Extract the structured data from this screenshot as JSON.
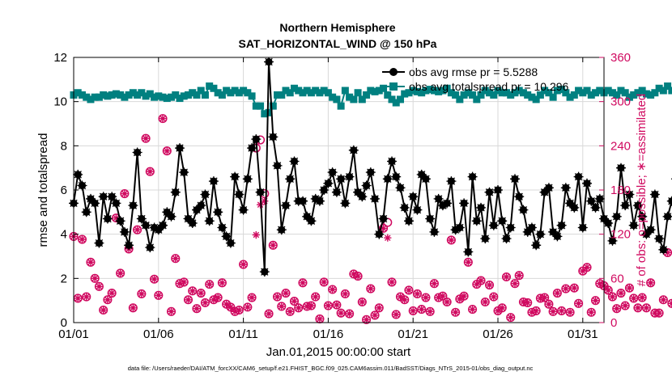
{
  "colors": {
    "rmse": "#000000",
    "spread": "#008080",
    "obs": "#d00a60",
    "axis": "#000000"
  },
  "chart_data": {
    "type": "line",
    "title": "Northern Hemisphere",
    "subtitle": "SAT_HORIZONTAL_WIND @ 150 hPa",
    "xlabel": "Jan.01,2015 00:00:00 start",
    "ylabel": "rmse and totalspread",
    "ylabel_right": "# of obs: o=possible; ∗=assimilated",
    "footer": "data file: /Users/raeder/DAI/ATM_forcXX/CAM6_setup/f.e21.FHIST_BGC.f09_025.CAM6assim.011/BadSST/Diags_NTrS_2015-01/obs_diag_output.nc",
    "x_range": [
      1,
      32.25
    ],
    "ylim": [
      0,
      12
    ],
    "ylim_right": [
      0,
      360
    ],
    "x_ticks": [
      1,
      6,
      11,
      16,
      21,
      26,
      31
    ],
    "x_tick_labels": [
      "01/01",
      "01/06",
      "01/11",
      "01/16",
      "01/21",
      "01/26",
      "01/31"
    ],
    "y_ticks": [
      0,
      2,
      4,
      6,
      8,
      10,
      12
    ],
    "y_ticks_right": [
      0,
      60,
      120,
      180,
      240,
      300,
      360
    ],
    "grid": true,
    "legend_position": "top-right",
    "series": [
      {
        "name": "obs avg rmse pr = 5.5288",
        "axis": "left",
        "values": [
          5.4,
          6.7,
          6.2,
          5.0,
          5.6,
          5.4,
          3.6,
          5.7,
          4.7,
          5.7,
          5.4,
          4.6,
          4.1,
          3.5,
          5.3,
          7.7,
          4.7,
          4.4,
          3.4,
          4.3,
          4.2,
          4.4,
          5.0,
          4.8,
          5.9,
          7.9,
          6.8,
          4.7,
          4.5,
          5.1,
          5.3,
          5.8,
          4.6,
          6.4,
          5.0,
          4.3,
          3.9,
          3.6,
          6.6,
          5.8,
          5.1,
          6.5,
          7.9,
          8.3,
          5.9,
          2.3,
          11.8,
          8.4,
          7.1,
          4.2,
          5.3,
          6.5,
          7.3,
          5.5,
          5.5,
          4.8,
          4.6,
          5.6,
          5.5,
          6.0,
          6.3,
          6.8,
          5.9,
          6.5,
          5.4,
          6.6,
          7.8,
          5.9,
          5.7,
          6.2,
          6.8,
          5.6,
          4.0,
          4.7,
          6.5,
          7.3,
          6.6,
          6.1,
          5.2,
          4.6,
          5.7,
          5.1,
          6.7,
          6.5,
          4.7,
          4.1,
          5.6,
          5.3,
          5.4,
          6.4,
          4.2,
          4.3,
          5.4,
          3.2,
          6.6,
          4.6,
          5.2,
          3.8,
          5.9,
          4.4,
          6.0,
          4.6,
          3.8,
          4.3,
          6.5,
          5.7,
          5.1,
          4.1,
          4.3,
          3.5,
          4.0,
          5.9,
          6.1,
          4.1,
          3.9,
          4.4,
          6.1,
          5.4,
          5.2,
          6.6,
          4.3,
          6.3,
          5.5,
          5.2,
          5.6,
          4.7,
          4.5,
          3.7,
          4.8,
          7.0,
          5.3,
          5.8,
          4.4,
          5.3,
          4.8,
          4.0,
          4.2,
          5.8,
          3.8,
          3.3,
          4.8,
          5.5,
          6.5,
          5.4,
          5.9,
          6.1,
          6.3,
          6.5,
          6.2,
          5.3
        ]
      },
      {
        "name": "obs avg totalspread pr = 10.296",
        "axis": "left",
        "values": [
          10.3,
          10.4,
          10.3,
          10.2,
          10.1,
          10.2,
          10.2,
          10.3,
          10.25,
          10.3,
          10.35,
          10.3,
          10.2,
          10.3,
          10.4,
          10.3,
          10.4,
          10.25,
          10.35,
          10.2,
          10.25,
          10.2,
          10.15,
          10.2,
          10.3,
          10.15,
          10.25,
          10.3,
          10.4,
          10.3,
          10.5,
          10.3,
          10.7,
          10.6,
          10.4,
          10.3,
          10.5,
          10.4,
          10.5,
          10.4,
          10.5,
          10.4,
          10.25,
          9.8,
          9.8,
          9.45,
          9.5,
          9.8,
          10.3,
          10.3,
          10.5,
          10.4,
          10.6,
          10.5,
          10.4,
          10.5,
          10.4,
          10.5,
          10.4,
          10.5,
          10.4,
          10.2,
          10.1,
          9.8,
          10.5,
          10.2,
          10.1,
          10.4,
          10.1,
          10.3,
          10.5,
          10.45,
          10.5,
          10.6,
          10.3,
          10.1,
          9.95,
          10.1,
          10.35,
          10.4,
          10.5,
          10.45,
          10.4,
          10.5,
          10.55,
          10.5,
          10.45,
          10.5,
          10.6,
          10.4,
          10.3,
          10.1,
          10.3,
          10.4,
          10.3,
          10.1,
          10.3,
          10.5,
          10.4,
          10.3,
          10.5,
          10.4,
          10.4,
          10.3,
          10.4,
          10.5,
          10.4,
          10.3,
          10.2,
          10.1,
          10.3,
          10.5,
          10.4,
          10.2,
          10.5,
          10.55,
          10.4,
          10.2,
          10.3,
          10.5,
          10.4,
          10.5,
          10.3,
          10.4,
          10.5,
          10.4,
          10.5,
          10.4,
          10.3,
          10.5,
          10.4,
          10.2,
          10.3,
          10.4,
          10.5,
          10.35,
          10.3,
          10.4,
          10.6,
          10.5,
          10.7,
          10.5,
          10.5,
          10.4,
          10.5,
          10.35,
          10.5,
          10.6,
          10.3,
          10.2
        ]
      },
      {
        "name": "obs possible",
        "axis": "right",
        "marker": "circle",
        "values": [
          117,
          33,
          113,
          35,
          82,
          60,
          49,
          17,
          31,
          40,
          142,
          67,
          175,
          100,
          20,
          126,
          39,
          250,
          205,
          59,
          37,
          277,
          233,
          15,
          87,
          53,
          55,
          31,
          43,
          19,
          40,
          27,
          52,
          31,
          34,
          54,
          25,
          21,
          15,
          17,
          79,
          21,
          34,
          237,
          248,
          175,
          12,
          105,
          35,
          22,
          40,
          15,
          29,
          20,
          54,
          22,
          23,
          35,
          5,
          55,
          23,
          45,
          24,
          13,
          39,
          12,
          66,
          63,
          28,
          4,
          46,
          10,
          20,
          128,
          136,
          55,
          11,
          35,
          31,
          44,
          16,
          39,
          18,
          34,
          15,
          53,
          34,
          36,
          28,
          112,
          14,
          32,
          36,
          82,
          18,
          52,
          57,
          28,
          51,
          35,
          16,
          20,
          62,
          7,
          53,
          64,
          28,
          27,
          14,
          16,
          33,
          34,
          25,
          15,
          40,
          16,
          46,
          14,
          47,
          26,
          70,
          75,
          14,
          30,
          53,
          50,
          44,
          35,
          19,
          40,
          23,
          47,
          33,
          20,
          34,
          20,
          54,
          13,
          13,
          31,
          95,
          26,
          27,
          33,
          66,
          2
        ]
      },
      {
        "name": "obs assimilated",
        "axis": "right",
        "marker": "asterisk",
        "values": [
          117,
          33,
          113,
          35,
          82,
          60,
          49,
          17,
          31,
          40,
          142,
          67,
          175,
          100,
          20,
          126,
          39,
          250,
          205,
          59,
          37,
          277,
          233,
          15,
          87,
          53,
          55,
          31,
          43,
          19,
          40,
          27,
          52,
          31,
          34,
          54,
          25,
          21,
          15,
          17,
          79,
          21,
          34,
          119,
          160,
          165,
          12,
          105,
          35,
          22,
          40,
          15,
          29,
          20,
          54,
          22,
          23,
          35,
          5,
          55,
          23,
          45,
          24,
          13,
          39,
          12,
          66,
          63,
          28,
          4,
          46,
          10,
          20,
          128,
          115,
          55,
          11,
          35,
          31,
          44,
          16,
          39,
          18,
          34,
          15,
          53,
          34,
          36,
          28,
          112,
          14,
          32,
          36,
          82,
          18,
          52,
          57,
          28,
          51,
          35,
          16,
          20,
          62,
          7,
          53,
          64,
          28,
          27,
          14,
          16,
          33,
          34,
          25,
          15,
          40,
          16,
          46,
          14,
          47,
          26,
          70,
          75,
          14,
          30,
          53,
          50,
          44,
          35,
          19,
          40,
          23,
          47,
          33,
          20,
          34,
          20,
          54,
          13,
          13,
          31,
          95,
          26,
          27,
          33,
          66,
          2
        ]
      }
    ]
  }
}
